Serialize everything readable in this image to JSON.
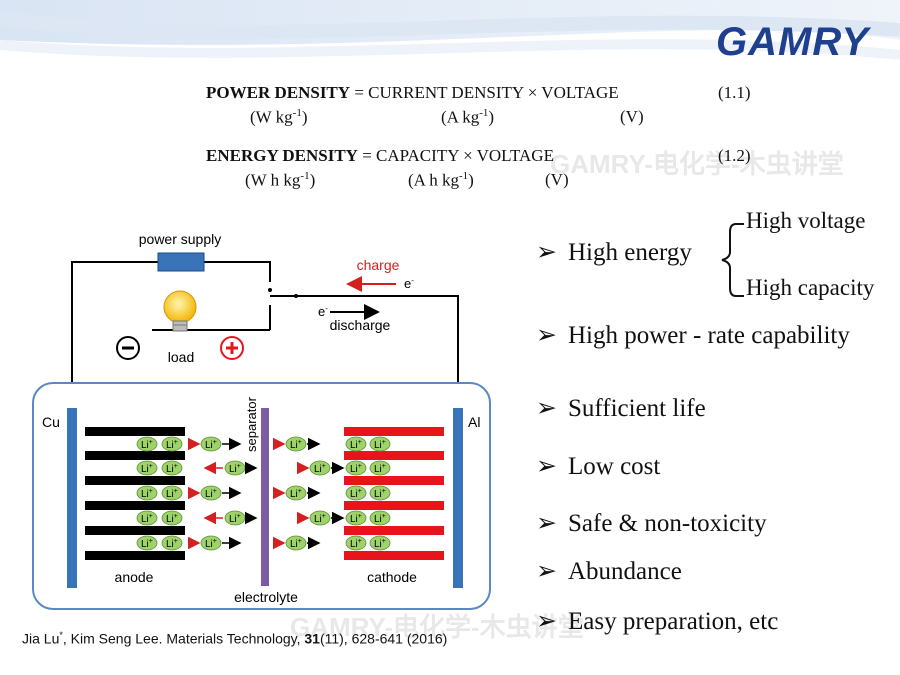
{
  "logo": {
    "text": "GAMRY",
    "color": "#1f3f8f"
  },
  "equations": [
    {
      "lhs": "POWER DENSITY",
      "rhs": "= CURRENT DENSITY  × VOLTAGE",
      "number": "(1.1)",
      "units": [
        "(W kg",
        "(A kg",
        "(V)"
      ]
    },
    {
      "lhs": "ENERGY DENSITY",
      "rhs": "= CAPACITY  × VOLTAGE",
      "number": "(1.2)",
      "units": [
        "(W h kg",
        "(A h kg",
        "(V)"
      ]
    }
  ],
  "unit_suffix": {
    "exp": "-1",
    "close": ")"
  },
  "diagram": {
    "power_supply": "power supply",
    "charge": "charge",
    "discharge": "discharge",
    "electron": "e",
    "electron_sup": "-",
    "load": "load",
    "minus": "−",
    "plus": "+",
    "cu": "Cu",
    "al": "Al",
    "separator": "separator",
    "anode": "anode",
    "cathode": "cathode",
    "electrolyte": "electrolyte",
    "li_ion": "Li",
    "li_sup": "+",
    "colors": {
      "anode": "#000000",
      "cathode": "#e8141b",
      "current_collector": "#3a74b8",
      "separator": "#7d5ca3",
      "li_ion": "#9ed36a",
      "charge_arrow": "#d42020",
      "power_supply": "#3a74b8",
      "bulb": "#f7c51a"
    }
  },
  "bullets": {
    "high_energy": "High energy",
    "high_voltage": "High voltage",
    "high_capacity": "High capacity",
    "items": [
      "High power - rate capability",
      "Sufficient life",
      "Low cost",
      "Safe & non-toxicity",
      "Abundance",
      "Easy preparation, etc"
    ]
  },
  "watermarks": [
    "GAMRY-电化学-木虫讲堂",
    "GAMRY-电化学-木虫讲堂"
  ],
  "citation": {
    "authors": "Jia Lu",
    "star": "*",
    "rest": ", Kim Seng Lee.  Materials Technology, ",
    "volume": "31",
    "tail": "(11), 628-641 (2016)"
  }
}
